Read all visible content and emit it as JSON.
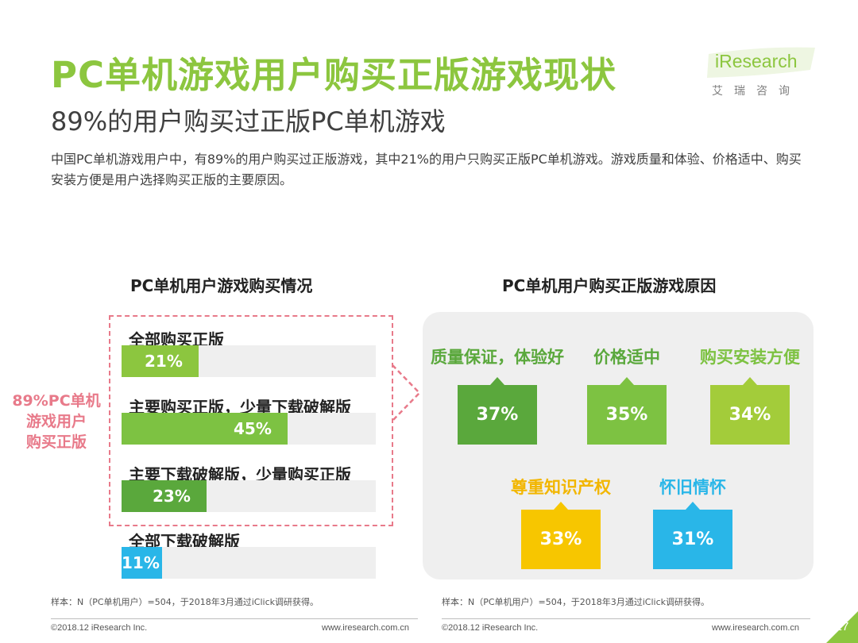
{
  "header": {
    "title": "PC单机游戏用户购买正版游戏现状",
    "subtitle": "89%的用户购买过正版PC单机游戏",
    "description": "中国PC单机游戏用户中，有89%的用户购买过正版游戏，其中21%的用户只购买正版PC单机游戏。游戏质量和体验、价格适中、购买安装方便是用户选择购买正版的主要原因。"
  },
  "logo": {
    "brand": "iResearch",
    "tagline": "艾瑞咨询"
  },
  "callout": {
    "text": "89%PC单机游戏用户购买正版"
  },
  "chart_data": [
    {
      "type": "bar",
      "title": "PC单机用户游戏购买情况",
      "categories": [
        "全部购买正版",
        "主要购买正版，少量下载破解版",
        "主要下载破解版，少量购买正版",
        "全部下载破解版"
      ],
      "values": [
        21,
        45,
        23,
        11
      ],
      "value_labels": [
        "21%",
        "45%",
        "23%",
        "11%"
      ],
      "colors": [
        "#8cc63f",
        "#7dc242",
        "#5aa83c",
        "#29b6e8"
      ],
      "unit": "%",
      "ylim": [
        0,
        100
      ]
    },
    {
      "type": "table",
      "title": "PC单机用户购买正版游戏原因",
      "categories": [
        "质量保证，体验好",
        "价格适中",
        "购买安装方便",
        "尊重知识产权",
        "怀旧情怀"
      ],
      "values": [
        37,
        35,
        34,
        33,
        31
      ],
      "value_labels": [
        "37%",
        "35%",
        "34%",
        "33%",
        "31%"
      ],
      "colors": [
        "#5aa83c",
        "#7dc242",
        "#a3cc3a",
        "#f7c600",
        "#29b6e8"
      ],
      "label_colors": [
        "#5aa83c",
        "#5aa83c",
        "#7dc242",
        "#f2b600",
        "#29b6e8"
      ]
    }
  ],
  "notes": {
    "left": "样本：N（PC单机用户）=504，于2018年3月通过iClick调研获得。",
    "right": "样本：N（PC单机用户）=504，于2018年3月通过iClick调研获得。"
  },
  "footer": {
    "left_copyright": "©2018.12 iResearch Inc.",
    "left_url": "www.iresearch.com.cn",
    "right_copyright": "©2018.12 iResearch Inc.",
    "right_url": "www.iresearch.com.cn",
    "page_number": "27"
  },
  "colors": {
    "brand_green": "#8cc63f",
    "accent_pink": "#e87a8a"
  }
}
